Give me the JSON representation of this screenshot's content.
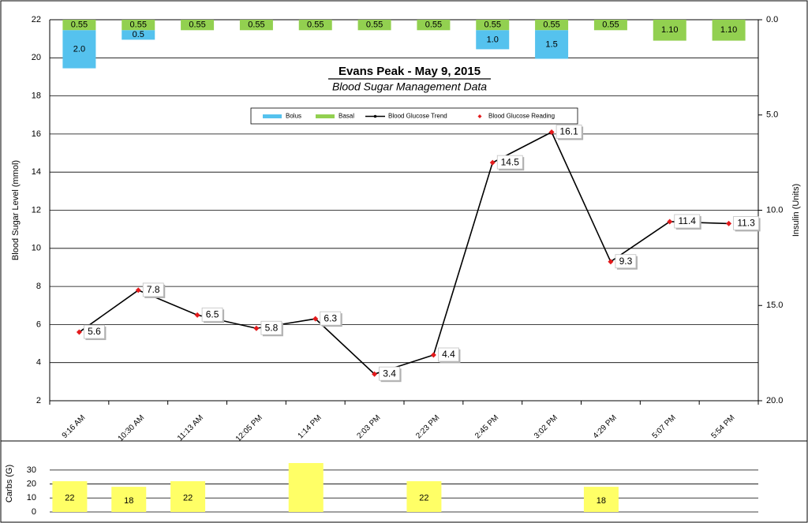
{
  "chart_data": [
    {
      "type": "combo",
      "title": "Evans Peak - May 9, 2015",
      "subtitle": "Blood Sugar Management Data",
      "ylabel": "Blood Sugar Level  (mmol)",
      "y2label": "Insulin (Units)",
      "ylim": [
        2,
        22
      ],
      "y2lim": [
        0,
        20
      ],
      "y2_reversed": true,
      "yticks": [
        "2",
        "4",
        "6",
        "8",
        "10",
        "12",
        "14",
        "16",
        "18",
        "20",
        "22"
      ],
      "y2ticks": [
        "0.0",
        "5.0",
        "10.0",
        "15.0",
        "20.0"
      ],
      "grid": true,
      "legend_position": "top-center",
      "categories": [
        "9:16 AM",
        "10:30 AM",
        "11:13 AM",
        "12:05 PM",
        "1:14 PM",
        "2:03 PM",
        "2:23 PM",
        "2:45 PM",
        "3:02 PM",
        "4:29 PM",
        "5:07 PM",
        "5:54 PM"
      ],
      "series": [
        {
          "name": "Bolus",
          "kind": "bar",
          "axis": "y2",
          "color": "#55c2ee",
          "values": [
            2.0,
            0.5,
            null,
            null,
            null,
            null,
            null,
            1.0,
            1.5,
            null,
            null,
            null
          ],
          "labels": [
            "2.0",
            "0.5",
            "",
            "",
            "",
            "",
            "",
            "1.0",
            "1.5",
            "",
            "",
            ""
          ]
        },
        {
          "name": "Basal",
          "kind": "bar",
          "axis": "y2",
          "color": "#92d050",
          "values": [
            0.55,
            0.55,
            0.55,
            0.55,
            0.55,
            0.55,
            0.55,
            0.55,
            0.55,
            0.55,
            1.1,
            1.1
          ],
          "labels": [
            "0.55",
            "0.55",
            "0.55",
            "0.55",
            "0.55",
            "0.55",
            "0.55",
            "0.55",
            "0.55",
            "0.55",
            "1.10",
            "1.10"
          ]
        },
        {
          "name": "Blood Glucose Trend",
          "kind": "line",
          "axis": "y",
          "color": "#000000",
          "values": [
            5.6,
            7.8,
            6.5,
            5.8,
            6.3,
            3.4,
            4.4,
            14.5,
            16.1,
            9.3,
            11.4,
            11.3
          ]
        },
        {
          "name": "Blood Glucose Reading",
          "kind": "marker",
          "axis": "y",
          "color": "#e31a1c",
          "values": [
            5.6,
            7.8,
            6.5,
            5.8,
            6.3,
            3.4,
            4.4,
            14.5,
            16.1,
            9.3,
            11.4,
            11.3
          ],
          "labels": [
            "5.6",
            "7.8",
            "6.5",
            "5.8",
            "6.3",
            "3.4",
            "4.4",
            "14.5",
            "16.1",
            "9.3",
            "11.4",
            "11.3"
          ]
        }
      ]
    },
    {
      "type": "bar",
      "ylabel": "Carbs (G)",
      "ylim": [
        0,
        35
      ],
      "yticks": [
        "0",
        "10",
        "20",
        "30"
      ],
      "grid": true,
      "categories": [
        "9:16 AM",
        "10:30 AM",
        "11:13 AM",
        "12:05 PM",
        "1:14 PM",
        "2:03 PM",
        "2:23 PM",
        "2:45 PM",
        "3:02 PM",
        "4:29 PM",
        "5:07 PM",
        "5:54 PM"
      ],
      "series": [
        {
          "color": "#ffff66",
          "values": [
            22,
            18,
            22,
            null,
            35,
            null,
            22,
            null,
            null,
            18,
            null,
            null
          ],
          "labels": [
            "22",
            "18",
            "22",
            "",
            "",
            "",
            "22",
            "",
            "",
            "18",
            "",
            ""
          ]
        }
      ]
    }
  ]
}
